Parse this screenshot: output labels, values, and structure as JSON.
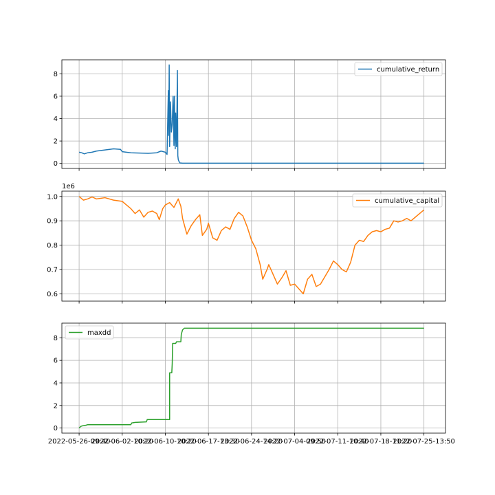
{
  "chart_data": [
    {
      "type": "line",
      "series": [
        {
          "name": "cumulative_return",
          "color": "#1f77b4",
          "points": [
            [
              0,
              1.0
            ],
            [
              0.3,
              0.95
            ],
            [
              0.6,
              0.85
            ],
            [
              1,
              0.95
            ],
            [
              1.5,
              1.0
            ],
            [
              2,
              1.1
            ],
            [
              3,
              1.2
            ],
            [
              4,
              1.3
            ],
            [
              4.8,
              1.25
            ],
            [
              5,
              1.05
            ],
            [
              6,
              0.95
            ],
            [
              7,
              0.92
            ],
            [
              8,
              0.9
            ],
            [
              9,
              0.95
            ],
            [
              9.5,
              1.1
            ],
            [
              10,
              1.0
            ],
            [
              10.2,
              0.8
            ],
            [
              10.35,
              6.5
            ],
            [
              10.4,
              2.5
            ],
            [
              10.45,
              8.8
            ],
            [
              10.5,
              1.5
            ],
            [
              10.6,
              5.5
            ],
            [
              10.7,
              2.8
            ],
            [
              10.8,
              3.5
            ],
            [
              10.9,
              6.0
            ],
            [
              11.0,
              1.6
            ],
            [
              11.05,
              6.0
            ],
            [
              11.15,
              1.3
            ],
            [
              11.2,
              4.5
            ],
            [
              11.3,
              1.5
            ],
            [
              11.4,
              8.3
            ],
            [
              11.45,
              0.7
            ],
            [
              11.5,
              0.35
            ],
            [
              11.6,
              0.15
            ],
            [
              11.7,
              0.04
            ],
            [
              12,
              0.02
            ],
            [
              40,
              0.02
            ]
          ]
        }
      ],
      "yticks": [
        "0",
        "2",
        "4",
        "6",
        "8"
      ],
      "ylim": [
        -0.45,
        9.25
      ],
      "grid": true,
      "legend": "upper right"
    },
    {
      "type": "line",
      "y_offset_label": "1e6",
      "series": [
        {
          "name": "cumulative_capital",
          "color": "#ff7f0e",
          "points": [
            [
              0,
              1.0
            ],
            [
              0.5,
              0.985
            ],
            [
              1,
              0.99
            ],
            [
              1.5,
              0.998
            ],
            [
              2,
              0.99
            ],
            [
              3,
              0.995
            ],
            [
              4,
              0.985
            ],
            [
              5,
              0.98
            ],
            [
              5.5,
              0.965
            ],
            [
              6,
              0.95
            ],
            [
              6.5,
              0.93
            ],
            [
              7,
              0.945
            ],
            [
              7.5,
              0.915
            ],
            [
              8,
              0.935
            ],
            [
              8.5,
              0.94
            ],
            [
              9,
              0.93
            ],
            [
              9.3,
              0.905
            ],
            [
              9.7,
              0.95
            ],
            [
              10,
              0.965
            ],
            [
              10.5,
              0.975
            ],
            [
              11,
              0.955
            ],
            [
              11.5,
              0.99
            ],
            [
              11.8,
              0.96
            ],
            [
              12,
              0.91
            ],
            [
              12.5,
              0.845
            ],
            [
              13,
              0.88
            ],
            [
              13.5,
              0.905
            ],
            [
              14,
              0.925
            ],
            [
              14.3,
              0.84
            ],
            [
              14.8,
              0.865
            ],
            [
              15,
              0.89
            ],
            [
              15.5,
              0.83
            ],
            [
              16,
              0.82
            ],
            [
              16.5,
              0.86
            ],
            [
              17,
              0.875
            ],
            [
              17.5,
              0.865
            ],
            [
              18,
              0.91
            ],
            [
              18.5,
              0.935
            ],
            [
              19,
              0.92
            ],
            [
              19.5,
              0.875
            ],
            [
              20,
              0.82
            ],
            [
              20.5,
              0.785
            ],
            [
              21,
              0.72
            ],
            [
              21.3,
              0.66
            ],
            [
              21.8,
              0.7
            ],
            [
              22,
              0.72
            ],
            [
              22.5,
              0.68
            ],
            [
              23,
              0.64
            ],
            [
              23.5,
              0.665
            ],
            [
              24,
              0.695
            ],
            [
              24.5,
              0.635
            ],
            [
              25,
              0.64
            ],
            [
              25.5,
              0.62
            ],
            [
              26,
              0.6
            ],
            [
              26.5,
              0.66
            ],
            [
              27,
              0.68
            ],
            [
              27.5,
              0.63
            ],
            [
              28,
              0.64
            ],
            [
              28.5,
              0.67
            ],
            [
              29,
              0.7
            ],
            [
              29.5,
              0.735
            ],
            [
              30,
              0.72
            ],
            [
              30.5,
              0.7
            ],
            [
              31,
              0.69
            ],
            [
              31.5,
              0.73
            ],
            [
              32,
              0.8
            ],
            [
              32.5,
              0.82
            ],
            [
              33,
              0.815
            ],
            [
              33.5,
              0.84
            ],
            [
              34,
              0.855
            ],
            [
              34.5,
              0.86
            ],
            [
              35,
              0.855
            ],
            [
              35.5,
              0.865
            ],
            [
              36,
              0.87
            ],
            [
              36.5,
              0.9
            ],
            [
              37,
              0.895
            ],
            [
              37.5,
              0.9
            ],
            [
              38,
              0.91
            ],
            [
              38.5,
              0.9
            ],
            [
              39,
              0.915
            ],
            [
              39.5,
              0.93
            ],
            [
              40,
              0.945
            ]
          ]
        }
      ],
      "yticks": [
        "0.6",
        "0.7",
        "0.8",
        "0.9",
        "1.0"
      ],
      "ylim": [
        0.57,
        1.022
      ],
      "grid": true,
      "legend": "upper right"
    },
    {
      "type": "line",
      "series": [
        {
          "name": "maxdd",
          "color": "#2ca02c",
          "points": [
            [
              0,
              0.0
            ],
            [
              0.2,
              0.15
            ],
            [
              0.4,
              0.2
            ],
            [
              0.8,
              0.25
            ],
            [
              1,
              0.3
            ],
            [
              6,
              0.3
            ],
            [
              6.1,
              0.45
            ],
            [
              6.5,
              0.5
            ],
            [
              7.8,
              0.55
            ],
            [
              7.9,
              0.75
            ],
            [
              10.5,
              0.75
            ],
            [
              10.5,
              4.9
            ],
            [
              10.75,
              4.9
            ],
            [
              10.8,
              5.7
            ],
            [
              10.85,
              7.5
            ],
            [
              11.2,
              7.5
            ],
            [
              11.3,
              7.65
            ],
            [
              11.8,
              7.65
            ],
            [
              11.85,
              8.3
            ],
            [
              12.0,
              8.7
            ],
            [
              12.2,
              8.85
            ],
            [
              40,
              8.85
            ]
          ]
        }
      ],
      "yticks": [
        "0",
        "2",
        "4",
        "6",
        "8"
      ],
      "ylim": [
        -0.45,
        9.3
      ],
      "grid": true,
      "legend": "upper left"
    }
  ],
  "x_axis": {
    "xlim": [
      -2,
      42.5
    ],
    "tick_positions": [
      0,
      5,
      10,
      15,
      20,
      25,
      30,
      35,
      40
    ],
    "tick_labels": [
      "2022-05-26-09:40",
      "2022-06-02-10:20",
      "2022-06-10-10:20",
      "2022-06-17-13:30",
      "2022-06-24-14:20",
      "2022-07-04-09:50",
      "2022-07-11-10:40",
      "2022-07-18-11:20",
      "2022-07-25-13:50"
    ]
  }
}
